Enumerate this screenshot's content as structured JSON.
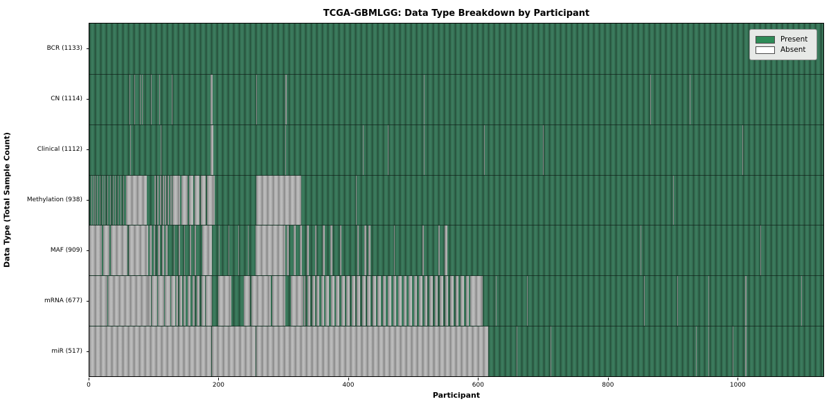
{
  "chart_data": {
    "type": "heatmap",
    "title": "TCGA-GBMLGG: Data Type Breakdown by Participant",
    "xlabel": "Participant",
    "ylabel": "Data Type (Total Sample Count)",
    "x_domain": [
      0,
      1133
    ],
    "x_ticks": [
      0,
      200,
      400,
      600,
      800,
      1000
    ],
    "grid": false,
    "legend": {
      "position": "upper-right",
      "entries": [
        {
          "label": "Present",
          "color": "#2e8b57"
        },
        {
          "label": "Absent",
          "color": "#ffffff"
        }
      ]
    },
    "colors": {
      "present": "#2e8b57",
      "absent": "#ffffff",
      "absent_rendered": "#a6a6a6",
      "row_divider": "#16281e"
    },
    "rows": [
      {
        "name": "bcr",
        "label": "BCR (1133)",
        "data_type": "BCR",
        "present_count": 1133,
        "absent_runs": []
      },
      {
        "name": "cn",
        "label": "CN (1114)",
        "data_type": "CN",
        "present_count": 1114,
        "absent_runs": [
          [
            62,
            63
          ],
          [
            70,
            71
          ],
          [
            78,
            79
          ],
          [
            81,
            82
          ],
          [
            95,
            96
          ],
          [
            108,
            109
          ],
          [
            127,
            128
          ],
          [
            187,
            190
          ],
          [
            258,
            259
          ],
          [
            303,
            305
          ],
          [
            516,
            517
          ],
          [
            866,
            867
          ],
          [
            927,
            928
          ]
        ]
      },
      {
        "name": "clinical",
        "label": "Clinical (1112)",
        "data_type": "Clinical",
        "present_count": 1112,
        "absent_runs": [
          [
            63,
            64
          ],
          [
            110,
            111
          ],
          [
            187,
            191
          ],
          [
            303,
            304
          ],
          [
            422,
            423
          ],
          [
            461,
            462
          ],
          [
            516,
            517
          ],
          [
            609,
            610
          ],
          [
            700,
            701
          ],
          [
            1008,
            1009
          ]
        ]
      },
      {
        "name": "methylation",
        "label": "Methylation (938)",
        "data_type": "Methylation",
        "present_count": 938,
        "absent_runs": [
          [
            3,
            4
          ],
          [
            6,
            7
          ],
          [
            9,
            10
          ],
          [
            12,
            13
          ],
          [
            16,
            17
          ],
          [
            20,
            21
          ],
          [
            24,
            25
          ],
          [
            28,
            29
          ],
          [
            32,
            33
          ],
          [
            36,
            37
          ],
          [
            40,
            41
          ],
          [
            44,
            45
          ],
          [
            48,
            49
          ],
          [
            52,
            53
          ],
          [
            57,
            89
          ],
          [
            101,
            103
          ],
          [
            105,
            107
          ],
          [
            109,
            111
          ],
          [
            113,
            115
          ],
          [
            117,
            119
          ],
          [
            121,
            123
          ],
          [
            125,
            127
          ],
          [
            128,
            140
          ],
          [
            142,
            152
          ],
          [
            154,
            160
          ],
          [
            162,
            170
          ],
          [
            172,
            180
          ],
          [
            182,
            194
          ],
          [
            258,
            327
          ],
          [
            411,
            412
          ],
          [
            901,
            902
          ]
        ]
      },
      {
        "name": "maf",
        "label": "MAF (909)",
        "data_type": "MAF",
        "present_count": 909,
        "absent_runs": [
          [
            0,
            19
          ],
          [
            21,
            31
          ],
          [
            33,
            59
          ],
          [
            61,
            91
          ],
          [
            93,
            96
          ],
          [
            99,
            102
          ],
          [
            106,
            109
          ],
          [
            112,
            115
          ],
          [
            118,
            121
          ],
          [
            130,
            132
          ],
          [
            138,
            140
          ],
          [
            146,
            148
          ],
          [
            155,
            157
          ],
          [
            163,
            165
          ],
          [
            174,
            189
          ],
          [
            200,
            201
          ],
          [
            215,
            216
          ],
          [
            230,
            231
          ],
          [
            245,
            246
          ],
          [
            256,
            302
          ],
          [
            305,
            308
          ],
          [
            315,
            318
          ],
          [
            325,
            328
          ],
          [
            336,
            339
          ],
          [
            348,
            351
          ],
          [
            360,
            363
          ],
          [
            372,
            375
          ],
          [
            387,
            389
          ],
          [
            414,
            416
          ],
          [
            424,
            428
          ],
          [
            431,
            434
          ],
          [
            470,
            471
          ],
          [
            514,
            516
          ],
          [
            539,
            541
          ],
          [
            548,
            553
          ],
          [
            851,
            852
          ],
          [
            1036,
            1037
          ]
        ]
      },
      {
        "name": "mrna",
        "label": "mRNA (677)",
        "data_type": "mRNA",
        "present_count": 677,
        "absent_runs": [
          [
            0,
            28
          ],
          [
            29,
            91
          ],
          [
            91,
            95
          ],
          [
            96,
            105
          ],
          [
            106,
            115
          ],
          [
            116,
            125
          ],
          [
            126,
            133
          ],
          [
            134,
            137
          ],
          [
            139,
            143
          ],
          [
            145,
            149
          ],
          [
            152,
            156
          ],
          [
            159,
            163
          ],
          [
            166,
            170
          ],
          [
            173,
            178
          ],
          [
            180,
            189
          ],
          [
            199,
            219
          ],
          [
            238,
            248
          ],
          [
            250,
            280
          ],
          [
            282,
            302
          ],
          [
            311,
            330
          ],
          [
            331,
            334
          ],
          [
            337,
            341
          ],
          [
            344,
            348
          ],
          [
            351,
            355
          ],
          [
            358,
            362
          ],
          [
            365,
            370
          ],
          [
            373,
            378
          ],
          [
            381,
            386
          ],
          [
            389,
            394
          ],
          [
            397,
            402
          ],
          [
            405,
            410
          ],
          [
            413,
            418
          ],
          [
            421,
            426
          ],
          [
            429,
            434
          ],
          [
            437,
            442
          ],
          [
            445,
            450
          ],
          [
            453,
            458
          ],
          [
            461,
            466
          ],
          [
            469,
            474
          ],
          [
            477,
            482
          ],
          [
            485,
            490
          ],
          [
            493,
            498
          ],
          [
            501,
            506
          ],
          [
            509,
            514
          ],
          [
            517,
            522
          ],
          [
            525,
            530
          ],
          [
            533,
            538
          ],
          [
            541,
            546
          ],
          [
            549,
            554
          ],
          [
            557,
            562
          ],
          [
            565,
            570
          ],
          [
            573,
            578
          ],
          [
            581,
            586
          ],
          [
            588,
            607
          ],
          [
            627,
            628
          ],
          [
            675,
            676
          ],
          [
            856,
            857
          ],
          [
            907,
            908
          ],
          [
            956,
            957
          ],
          [
            1012,
            1014
          ],
          [
            1099,
            1100
          ]
        ]
      },
      {
        "name": "mir",
        "label": "miR (517)",
        "data_type": "miR",
        "present_count": 517,
        "absent_runs": [
          [
            0,
            188
          ],
          [
            189,
            257
          ],
          [
            258,
            616
          ],
          [
            660,
            661
          ],
          [
            712,
            713
          ],
          [
            936,
            937
          ],
          [
            956,
            957
          ],
          [
            993,
            994
          ],
          [
            1012,
            1014
          ]
        ]
      }
    ]
  }
}
